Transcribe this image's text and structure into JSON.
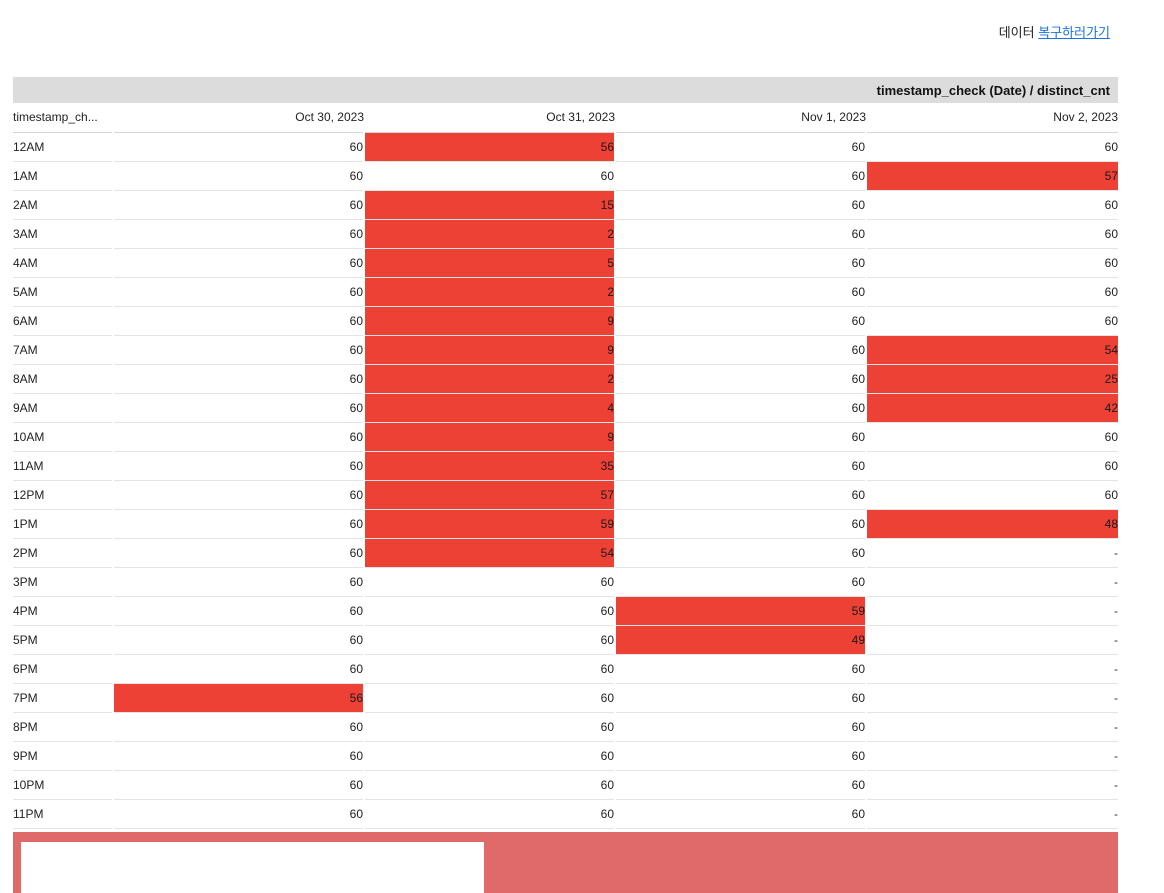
{
  "restore": {
    "prefix": "데이터",
    "link_label": "복구하러가기"
  },
  "pivot": {
    "header_label": "timestamp_check (Date) / distinct_cnt",
    "dimension_header": "timestamp_ch...",
    "columns": [
      "Oct 30, 2023",
      "Oct 31, 2023",
      "Nov 1, 2023",
      "Nov 2, 2023"
    ],
    "rows": [
      {
        "label": "12AM",
        "values": [
          "60",
          "56",
          "60",
          "60"
        ]
      },
      {
        "label": "1AM",
        "values": [
          "60",
          "60",
          "60",
          "57"
        ]
      },
      {
        "label": "2AM",
        "values": [
          "60",
          "15",
          "60",
          "60"
        ]
      },
      {
        "label": "3AM",
        "values": [
          "60",
          "2",
          "60",
          "60"
        ]
      },
      {
        "label": "4AM",
        "values": [
          "60",
          "5",
          "60",
          "60"
        ]
      },
      {
        "label": "5AM",
        "values": [
          "60",
          "2",
          "60",
          "60"
        ]
      },
      {
        "label": "6AM",
        "values": [
          "60",
          "9",
          "60",
          "60"
        ]
      },
      {
        "label": "7AM",
        "values": [
          "60",
          "9",
          "60",
          "54"
        ]
      },
      {
        "label": "8AM",
        "values": [
          "60",
          "2",
          "60",
          "25"
        ]
      },
      {
        "label": "9AM",
        "values": [
          "60",
          "4",
          "60",
          "42"
        ]
      },
      {
        "label": "10AM",
        "values": [
          "60",
          "9",
          "60",
          "60"
        ]
      },
      {
        "label": "11AM",
        "values": [
          "60",
          "35",
          "60",
          "60"
        ]
      },
      {
        "label": "12PM",
        "values": [
          "60",
          "57",
          "60",
          "60"
        ]
      },
      {
        "label": "1PM",
        "values": [
          "60",
          "59",
          "60",
          "48"
        ]
      },
      {
        "label": "2PM",
        "values": [
          "60",
          "54",
          "60",
          "-"
        ]
      },
      {
        "label": "3PM",
        "values": [
          "60",
          "60",
          "60",
          "-"
        ]
      },
      {
        "label": "4PM",
        "values": [
          "60",
          "60",
          "59",
          "-"
        ]
      },
      {
        "label": "5PM",
        "values": [
          "60",
          "60",
          "49",
          "-"
        ]
      },
      {
        "label": "6PM",
        "values": [
          "60",
          "60",
          "60",
          "-"
        ]
      },
      {
        "label": "7PM",
        "values": [
          "56",
          "60",
          "60",
          "-"
        ]
      },
      {
        "label": "8PM",
        "values": [
          "60",
          "60",
          "60",
          "-"
        ]
      },
      {
        "label": "9PM",
        "values": [
          "60",
          "60",
          "60",
          "-"
        ]
      },
      {
        "label": "10PM",
        "values": [
          "60",
          "60",
          "60",
          "-"
        ]
      },
      {
        "label": "11PM",
        "values": [
          "60",
          "60",
          "60",
          "-"
        ]
      }
    ],
    "highlight_rule": {
      "below": 60,
      "color": "#ee4136"
    }
  }
}
